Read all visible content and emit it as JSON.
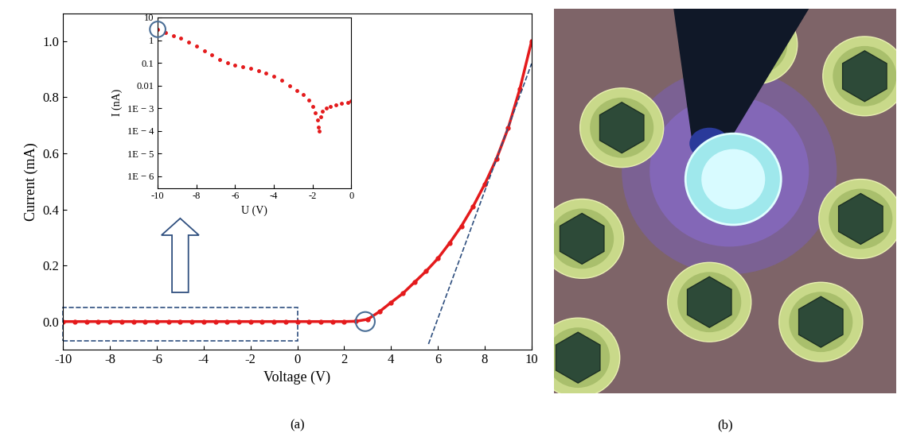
{
  "chart_data": [
    {
      "type": "line",
      "xlabel": "Voltage (V)",
      "ylabel": "Current (mA)",
      "xlim": [
        -10,
        10
      ],
      "xticks": [
        -10,
        -8,
        -6,
        -4,
        -2,
        0,
        2,
        4,
        6,
        8,
        10
      ],
      "ylim": [
        -0.1,
        1.1
      ],
      "yticks": [
        {
          "value": 0.0,
          "label": "0.0"
        },
        {
          "value": 0.2,
          "label": "0.2"
        },
        {
          "value": 0.4,
          "label": "0.4"
        },
        {
          "value": 0.6,
          "label": "0.6"
        },
        {
          "value": 0.8,
          "label": "0.8"
        },
        {
          "value": 1.0,
          "label": "1.0"
        }
      ],
      "grid": false,
      "series": [
        {
          "type": "line",
          "color": "#e41a1c",
          "line_style": "solid",
          "marker": "circle",
          "x": [
            -10,
            -9.5,
            -9,
            -8.5,
            -8,
            -7.5,
            -7,
            -6.5,
            -6,
            -5.5,
            -5,
            -4.5,
            -4,
            -3.5,
            -3,
            -2.5,
            -2,
            -1.5,
            -1,
            -0.5,
            0,
            0.5,
            1,
            1.5,
            2,
            2.5,
            3,
            3.5,
            4,
            4.5,
            5,
            5.5,
            6,
            6.5,
            7,
            7.5,
            8,
            8.5,
            9,
            9.5,
            10
          ],
          "values": [
            0,
            0,
            0,
            0,
            0,
            0,
            0,
            0,
            0,
            0,
            0,
            0,
            0,
            0,
            0,
            0,
            0,
            0,
            0,
            0,
            0,
            0,
            0,
            0,
            0,
            0.001,
            0.008,
            0.035,
            0.068,
            0.1,
            0.14,
            0.18,
            0.225,
            0.28,
            0.34,
            0.41,
            0.49,
            0.58,
            0.69,
            0.83,
            1.0
          ]
        },
        {
          "type": "line",
          "color": "#2f4f7f",
          "line_style": "dashed",
          "marker": "none",
          "x": [
            5.6,
            10
          ],
          "values": [
            -0.08,
            0.92
          ]
        },
        {
          "type": "scatter",
          "color": "#4a6e96",
          "marker": "circle",
          "x": [
            2.9
          ],
          "values": [
            0
          ]
        }
      ]
    },
    {
      "type": "line",
      "xlabel": "U (V)",
      "ylabel": "I (nA)",
      "log": "y",
      "xlim": [
        -10,
        0
      ],
      "xticks": [
        -10,
        -8,
        -6,
        -4,
        -2,
        0
      ],
      "ylim": [
        3e-07,
        10
      ],
      "yticks": [
        {
          "value": 10,
          "label": "10"
        },
        {
          "value": 1,
          "label": "1"
        },
        {
          "value": 0.1,
          "label": "0.1"
        },
        {
          "value": 0.01,
          "label": "0.01"
        },
        {
          "value": 0.001,
          "label": "1E − 3"
        },
        {
          "value": 0.0001,
          "label": "1E − 4"
        },
        {
          "value": 1e-05,
          "label": "1E − 5"
        },
        {
          "value": 1e-06,
          "label": "1E − 6"
        }
      ],
      "grid": false,
      "series": [
        {
          "type": "line",
          "color": "#e41a1c",
          "line_style": "none",
          "marker": "circle",
          "x": [
            -10,
            -9.6,
            -9.2,
            -8.8,
            -8.4,
            -8,
            -7.6,
            -7.2,
            -6.8,
            -6.4,
            -6,
            -5.6,
            -5.2,
            -4.8,
            -4.4,
            -4,
            -3.6,
            -3.2,
            -2.8,
            -2.5,
            -2.2,
            -2,
            -1.85,
            -1.75,
            -1.7,
            -1.65,
            -1.6,
            -1.5,
            -1.3,
            -1.1,
            -0.8,
            -0.5,
            -0.2,
            0
          ],
          "values": [
            3,
            2.2,
            1.6,
            1.2,
            0.85,
            0.55,
            0.35,
            0.22,
            0.14,
            0.1,
            0.08,
            0.065,
            0.055,
            0.045,
            0.035,
            0.025,
            0.017,
            0.01,
            0.006,
            0.004,
            0.0022,
            0.0012,
            0.0006,
            0.0003,
            0.00015,
            0.0001,
            0.0004,
            0.00075,
            0.001,
            0.0012,
            0.0014,
            0.0016,
            0.0018,
            0.002
          ]
        },
        {
          "type": "scatter",
          "color": "#4a6e96",
          "marker": "circle",
          "x": [
            -10
          ],
          "values": [
            3
          ]
        }
      ]
    }
  ],
  "panel_labels": [
    "(a)",
    "(b)"
  ]
}
